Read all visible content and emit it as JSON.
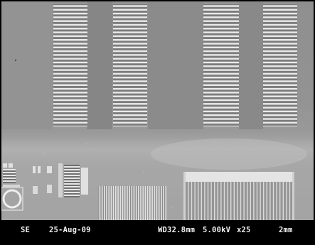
{
  "micrograph": {
    "grating_colors": {
      "line": "#e8e8e8",
      "gap": "#8c8c8c",
      "stripe": "#6f6f6f"
    }
  },
  "info_bar": {
    "detector": "SE",
    "date": "25-Aug-09",
    "working_distance": "WD32.8mm",
    "voltage": "5.00kV",
    "magnification": "x25",
    "scale": "2mm"
  }
}
